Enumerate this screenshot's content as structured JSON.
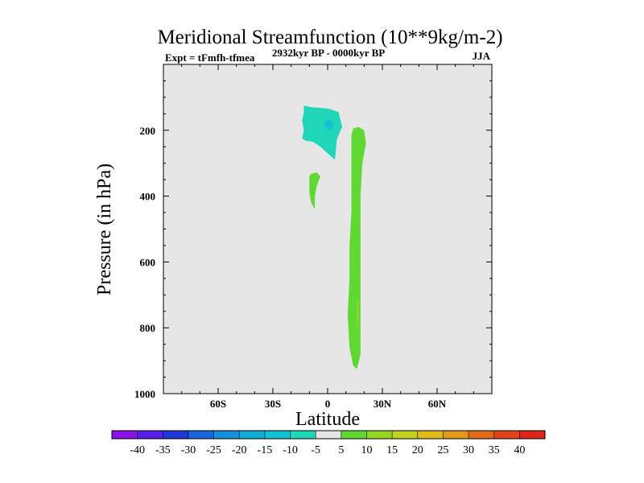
{
  "chart_data": {
    "type": "contour",
    "title": "Meridional Streamfunction (10**9kg/m-2)",
    "subtitle_left": "Expt = tFmfh-tfmea",
    "subtitle_center": "2932kyr BP - 0000kyr BP",
    "subtitle_right": "JJA",
    "xlabel": "Latitude",
    "ylabel": "Pressure (in hPa)",
    "xlim": [
      -90,
      90
    ],
    "ylim": [
      1000,
      0
    ],
    "x_ticks": [
      {
        "value": -60,
        "label": "60S"
      },
      {
        "value": -30,
        "label": "30S"
      },
      {
        "value": 0,
        "label": "0"
      },
      {
        "value": 30,
        "label": "30N"
      },
      {
        "value": 60,
        "label": "60N"
      }
    ],
    "y_ticks": [
      {
        "value": 200,
        "label": "200"
      },
      {
        "value": 400,
        "label": "400"
      },
      {
        "value": 600,
        "label": "600"
      },
      {
        "value": 800,
        "label": "800"
      },
      {
        "value": 1000,
        "label": "1000"
      }
    ],
    "background_color": "#e6e6e6",
    "regions": [
      {
        "name": "upper-negative-cell",
        "range": [
          -10,
          -5
        ],
        "color": "#1fd7b8",
        "points": [
          [
            -13,
            125
          ],
          [
            -9,
            130
          ],
          [
            -4,
            132
          ],
          [
            1,
            135
          ],
          [
            6,
            145
          ],
          [
            8,
            190
          ],
          [
            7,
            200
          ],
          [
            5,
            230
          ],
          [
            4,
            290
          ],
          [
            0,
            270
          ],
          [
            -4,
            250
          ],
          [
            -8,
            235
          ],
          [
            -12,
            232
          ],
          [
            -14,
            225
          ],
          [
            -13,
            200
          ],
          [
            -14,
            170
          ],
          [
            -13,
            145
          ]
        ]
      },
      {
        "name": "upper-negative-core",
        "range": [
          -15,
          -10
        ],
        "color": "#19c0d2",
        "points": [
          [
            -1,
            170
          ],
          [
            1,
            168
          ],
          [
            3,
            175
          ],
          [
            3,
            190
          ],
          [
            1,
            200
          ],
          [
            -1,
            195
          ],
          [
            -2,
            183
          ]
        ]
      },
      {
        "name": "small-positive-cell",
        "range": [
          5,
          10
        ],
        "color": "#5fd832",
        "points": [
          [
            -9,
            332
          ],
          [
            -6,
            328
          ],
          [
            -4,
            340
          ],
          [
            -6,
            370
          ],
          [
            -7,
            400
          ],
          [
            -7,
            440
          ],
          [
            -9,
            420
          ],
          [
            -10,
            390
          ],
          [
            -10,
            360
          ],
          [
            -10,
            340
          ]
        ]
      },
      {
        "name": "main-positive-cell",
        "range": [
          5,
          10
        ],
        "color": "#5fd832",
        "points": [
          [
            14,
            195
          ],
          [
            17,
            190
          ],
          [
            20,
            200
          ],
          [
            21,
            240
          ],
          [
            19,
            300
          ],
          [
            18,
            400
          ],
          [
            18,
            500
          ],
          [
            18,
            600
          ],
          [
            18,
            700
          ],
          [
            18,
            800
          ],
          [
            18,
            880
          ],
          [
            17,
            905
          ],
          [
            16,
            925
          ],
          [
            14,
            915
          ],
          [
            12,
            860
          ],
          [
            11,
            760
          ],
          [
            12,
            650
          ],
          [
            12,
            550
          ],
          [
            13,
            450
          ],
          [
            13,
            350
          ],
          [
            13,
            250
          ],
          [
            13,
            215
          ]
        ]
      },
      {
        "name": "main-positive-core",
        "range": [
          10,
          15
        ],
        "color": "#97d524",
        "points": [
          [
            16,
            715
          ],
          [
            17,
            720
          ],
          [
            17,
            760
          ],
          [
            17,
            790
          ],
          [
            16,
            800
          ],
          [
            16,
            760
          ]
        ]
      }
    ],
    "colorbar": {
      "labels": [
        "-40",
        "-35",
        "-30",
        "-25",
        "-20",
        "-15",
        "-10",
        "-5",
        "5",
        "10",
        "15",
        "20",
        "25",
        "30",
        "35",
        "40"
      ],
      "colors": [
        "#8a14e6",
        "#5a1ee6",
        "#2337d8",
        "#1766dc",
        "#1390d8",
        "#10acd8",
        "#10c2d2",
        "#1fd7b8",
        "#e6e6e6",
        "#5fd832",
        "#97d524",
        "#c2d21e",
        "#dfbb1a",
        "#e3961a",
        "#e06a18",
        "#e04418",
        "#dd2418"
      ]
    }
  }
}
